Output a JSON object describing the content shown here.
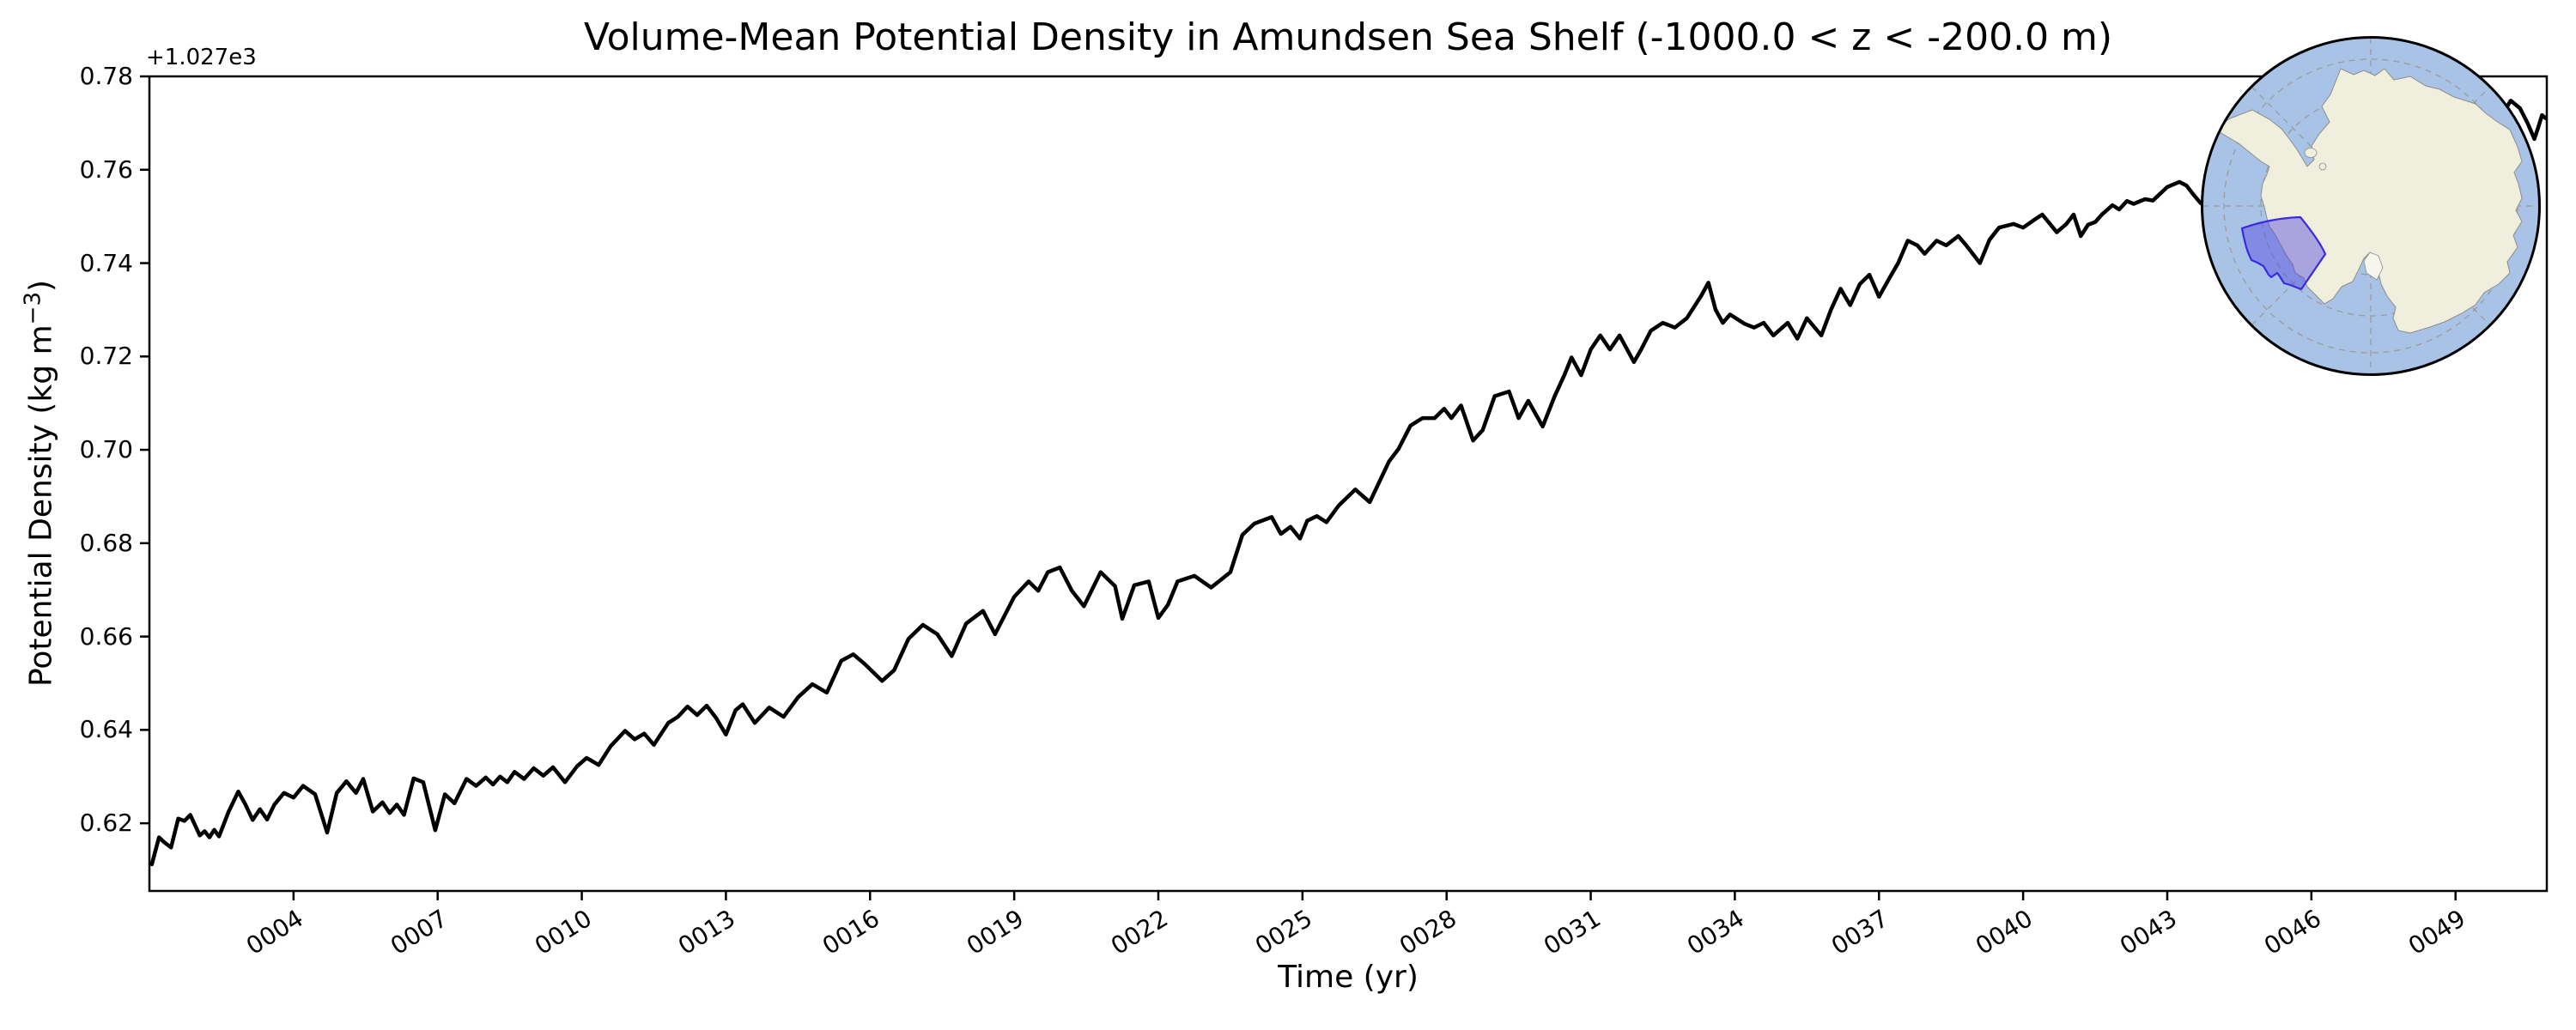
{
  "figure": {
    "background": "#ffffff"
  },
  "chart_data": {
    "type": "line",
    "title": "Volume-Mean Potential Density in Amundsen Sea Shelf (-1000.0 < z < -200.0 m)",
    "xlabel": "Time (yr)",
    "ylabel_prefix": "Potential Density (kg m",
    "ylabel_superscript": "−3",
    "ylabel_suffix": ")",
    "y_axis_offset_label": "+1.027e3",
    "xlim": [
      1.0,
      50.9
    ],
    "ylim": [
      0.6055,
      0.78
    ],
    "grid": false,
    "legend_position": "none",
    "line_color": "#000000",
    "line_width": 4.5,
    "x_ticks": [
      {
        "year": 4,
        "label": "0004"
      },
      {
        "year": 7,
        "label": "0007"
      },
      {
        "year": 10,
        "label": "0010"
      },
      {
        "year": 13,
        "label": "0013"
      },
      {
        "year": 16,
        "label": "0016"
      },
      {
        "year": 19,
        "label": "0019"
      },
      {
        "year": 22,
        "label": "0022"
      },
      {
        "year": 25,
        "label": "0025"
      },
      {
        "year": 28,
        "label": "0028"
      },
      {
        "year": 31,
        "label": "0031"
      },
      {
        "year": 34,
        "label": "0034"
      },
      {
        "year": 37,
        "label": "0037"
      },
      {
        "year": 40,
        "label": "0040"
      },
      {
        "year": 43,
        "label": "0043"
      },
      {
        "year": 46,
        "label": "0046"
      },
      {
        "year": 49,
        "label": "0049"
      }
    ],
    "y_ticks": [
      {
        "value": 0.62,
        "label": "0.62"
      },
      {
        "value": 0.64,
        "label": "0.64"
      },
      {
        "value": 0.66,
        "label": "0.66"
      },
      {
        "value": 0.68,
        "label": "0.68"
      },
      {
        "value": 0.7,
        "label": "0.70"
      },
      {
        "value": 0.72,
        "label": "0.72"
      },
      {
        "value": 0.74,
        "label": "0.74"
      },
      {
        "value": 0.76,
        "label": "0.76"
      },
      {
        "value": 0.78,
        "label": "0.78"
      }
    ],
    "series": [
      {
        "name": "volume_mean_potential_density",
        "units": "kg m-3 (offset +1.027e3)",
        "points": [
          [
            1.05,
            0.6112
          ],
          [
            1.2,
            0.617
          ],
          [
            1.3,
            0.616
          ],
          [
            1.45,
            0.6148
          ],
          [
            1.6,
            0.621
          ],
          [
            1.73,
            0.6205
          ],
          [
            1.85,
            0.6218
          ],
          [
            2.05,
            0.6174
          ],
          [
            2.15,
            0.6183
          ],
          [
            2.25,
            0.617
          ],
          [
            2.35,
            0.6186
          ],
          [
            2.45,
            0.6172
          ],
          [
            2.65,
            0.6225
          ],
          [
            2.85,
            0.6268
          ],
          [
            3.0,
            0.624
          ],
          [
            3.15,
            0.6207
          ],
          [
            3.3,
            0.623
          ],
          [
            3.45,
            0.6208
          ],
          [
            3.6,
            0.624
          ],
          [
            3.8,
            0.6265
          ],
          [
            4.0,
            0.6255
          ],
          [
            4.2,
            0.628
          ],
          [
            4.45,
            0.6262
          ],
          [
            4.7,
            0.618
          ],
          [
            4.9,
            0.6265
          ],
          [
            5.1,
            0.629
          ],
          [
            5.3,
            0.6265
          ],
          [
            5.45,
            0.6295
          ],
          [
            5.65,
            0.6225
          ],
          [
            5.85,
            0.6245
          ],
          [
            6.0,
            0.6222
          ],
          [
            6.15,
            0.624
          ],
          [
            6.3,
            0.6218
          ],
          [
            6.5,
            0.6296
          ],
          [
            6.7,
            0.6288
          ],
          [
            6.95,
            0.6185
          ],
          [
            7.15,
            0.6262
          ],
          [
            7.35,
            0.6243
          ],
          [
            7.6,
            0.6295
          ],
          [
            7.8,
            0.628
          ],
          [
            8.0,
            0.6298
          ],
          [
            8.15,
            0.6283
          ],
          [
            8.3,
            0.63
          ],
          [
            8.45,
            0.6288
          ],
          [
            8.6,
            0.631
          ],
          [
            8.8,
            0.6295
          ],
          [
            9.0,
            0.6318
          ],
          [
            9.2,
            0.6302
          ],
          [
            9.4,
            0.632
          ],
          [
            9.65,
            0.6288
          ],
          [
            9.9,
            0.6322
          ],
          [
            10.1,
            0.634
          ],
          [
            10.35,
            0.6325
          ],
          [
            10.6,
            0.6365
          ],
          [
            10.9,
            0.6398
          ],
          [
            11.1,
            0.638
          ],
          [
            11.3,
            0.6392
          ],
          [
            11.5,
            0.6368
          ],
          [
            11.8,
            0.6415
          ],
          [
            12.0,
            0.6428
          ],
          [
            12.2,
            0.645
          ],
          [
            12.4,
            0.6432
          ],
          [
            12.6,
            0.6452
          ],
          [
            12.8,
            0.6425
          ],
          [
            13.0,
            0.639
          ],
          [
            13.2,
            0.6442
          ],
          [
            13.35,
            0.6455
          ],
          [
            13.6,
            0.6415
          ],
          [
            13.9,
            0.6448
          ],
          [
            14.2,
            0.6428
          ],
          [
            14.5,
            0.647
          ],
          [
            14.8,
            0.6498
          ],
          [
            15.1,
            0.648
          ],
          [
            15.4,
            0.6548
          ],
          [
            15.65,
            0.6562
          ],
          [
            15.9,
            0.654
          ],
          [
            16.25,
            0.6505
          ],
          [
            16.5,
            0.6528
          ],
          [
            16.8,
            0.6595
          ],
          [
            17.1,
            0.6625
          ],
          [
            17.4,
            0.6605
          ],
          [
            17.7,
            0.6558
          ],
          [
            18.0,
            0.6628
          ],
          [
            18.35,
            0.6655
          ],
          [
            18.6,
            0.6605
          ],
          [
            19.0,
            0.6685
          ],
          [
            19.3,
            0.6718
          ],
          [
            19.5,
            0.6698
          ],
          [
            19.7,
            0.6738
          ],
          [
            19.95,
            0.6748
          ],
          [
            20.2,
            0.6698
          ],
          [
            20.45,
            0.6665
          ],
          [
            20.8,
            0.6738
          ],
          [
            21.1,
            0.6708
          ],
          [
            21.25,
            0.6638
          ],
          [
            21.5,
            0.671
          ],
          [
            21.8,
            0.6718
          ],
          [
            22.0,
            0.664
          ],
          [
            22.2,
            0.6668
          ],
          [
            22.4,
            0.6718
          ],
          [
            22.75,
            0.673
          ],
          [
            23.1,
            0.6705
          ],
          [
            23.5,
            0.6738
          ],
          [
            23.75,
            0.6818
          ],
          [
            24.0,
            0.6842
          ],
          [
            24.36,
            0.6856
          ],
          [
            24.55,
            0.682
          ],
          [
            24.75,
            0.6835
          ],
          [
            24.95,
            0.681
          ],
          [
            25.1,
            0.6848
          ],
          [
            25.3,
            0.6858
          ],
          [
            25.5,
            0.6845
          ],
          [
            25.75,
            0.688
          ],
          [
            26.1,
            0.6915
          ],
          [
            26.4,
            0.6888
          ],
          [
            26.8,
            0.6975
          ],
          [
            27.0,
            0.7002
          ],
          [
            27.25,
            0.7052
          ],
          [
            27.5,
            0.7068
          ],
          [
            27.75,
            0.7068
          ],
          [
            27.95,
            0.7088
          ],
          [
            28.1,
            0.7068
          ],
          [
            28.3,
            0.7095
          ],
          [
            28.55,
            0.702
          ],
          [
            28.75,
            0.7042
          ],
          [
            29.0,
            0.7115
          ],
          [
            29.3,
            0.7125
          ],
          [
            29.5,
            0.7068
          ],
          [
            29.7,
            0.7105
          ],
          [
            30.0,
            0.705
          ],
          [
            30.25,
            0.7115
          ],
          [
            30.45,
            0.716
          ],
          [
            30.6,
            0.7198
          ],
          [
            30.8,
            0.716
          ],
          [
            31.0,
            0.7215
          ],
          [
            31.2,
            0.7245
          ],
          [
            31.4,
            0.7215
          ],
          [
            31.6,
            0.7245
          ],
          [
            31.9,
            0.7188
          ],
          [
            32.05,
            0.7215
          ],
          [
            32.25,
            0.7255
          ],
          [
            32.5,
            0.7272
          ],
          [
            32.75,
            0.7262
          ],
          [
            33.0,
            0.7282
          ],
          [
            33.3,
            0.733
          ],
          [
            33.45,
            0.7358
          ],
          [
            33.6,
            0.73
          ],
          [
            33.75,
            0.7272
          ],
          [
            33.9,
            0.729
          ],
          [
            34.2,
            0.727
          ],
          [
            34.4,
            0.7262
          ],
          [
            34.6,
            0.7272
          ],
          [
            34.8,
            0.7245
          ],
          [
            35.1,
            0.7272
          ],
          [
            35.3,
            0.7238
          ],
          [
            35.5,
            0.7282
          ],
          [
            35.8,
            0.7245
          ],
          [
            36.0,
            0.73
          ],
          [
            36.2,
            0.7345
          ],
          [
            36.4,
            0.731
          ],
          [
            36.6,
            0.7355
          ],
          [
            36.8,
            0.7375
          ],
          [
            37.0,
            0.7328
          ],
          [
            37.2,
            0.7365
          ],
          [
            37.4,
            0.74
          ],
          [
            37.6,
            0.7448
          ],
          [
            37.8,
            0.7438
          ],
          [
            37.95,
            0.742
          ],
          [
            38.2,
            0.7448
          ],
          [
            38.4,
            0.7438
          ],
          [
            38.65,
            0.7458
          ],
          [
            38.8,
            0.744
          ],
          [
            39.1,
            0.74
          ],
          [
            39.3,
            0.745
          ],
          [
            39.5,
            0.7476
          ],
          [
            39.8,
            0.7484
          ],
          [
            40.0,
            0.7476
          ],
          [
            40.25,
            0.7494
          ],
          [
            40.4,
            0.7504
          ],
          [
            40.7,
            0.7466
          ],
          [
            40.9,
            0.7484
          ],
          [
            41.05,
            0.7504
          ],
          [
            41.2,
            0.7458
          ],
          [
            41.35,
            0.7482
          ],
          [
            41.5,
            0.7488
          ],
          [
            41.65,
            0.7505
          ],
          [
            41.86,
            0.7524
          ],
          [
            42.0,
            0.7515
          ],
          [
            42.16,
            0.7533
          ],
          [
            42.3,
            0.7527
          ],
          [
            42.54,
            0.7537
          ],
          [
            42.7,
            0.7534
          ],
          [
            43.0,
            0.7563
          ],
          [
            43.25,
            0.7574
          ],
          [
            43.4,
            0.7566
          ],
          [
            43.55,
            0.7546
          ],
          [
            43.7,
            0.7528
          ],
          [
            43.86,
            0.7524
          ],
          [
            44.3,
            0.75
          ],
          [
            44.9,
            0.7485
          ],
          [
            45.6,
            0.751
          ],
          [
            46.3,
            0.748
          ],
          [
            47.0,
            0.7505
          ],
          [
            47.8,
            0.754
          ],
          [
            48.5,
            0.758
          ],
          [
            49.2,
            0.7635
          ],
          [
            49.8,
            0.769
          ],
          [
            50.15,
            0.7748
          ],
          [
            50.34,
            0.7732
          ],
          [
            50.5,
            0.77
          ],
          [
            50.64,
            0.7666
          ],
          [
            50.72,
            0.769
          ],
          [
            50.8,
            0.7717
          ],
          [
            50.88,
            0.771
          ]
        ]
      }
    ]
  },
  "inset_map": {
    "name": "antarctica-south-polar-inset",
    "highlighted_region": "Amundsen Sea Shelf",
    "colors": {
      "ocean": "#a9c3e7",
      "land": "#f0eedc",
      "ice_shelf": "#f7f6ec",
      "coastline": "#8c8c8c",
      "graticule": "#9a9a9a",
      "region_fill": "#5246e0",
      "region_fill_opacity": 0.45,
      "region_border": "#3a2be0",
      "map_border": "#000000"
    }
  }
}
